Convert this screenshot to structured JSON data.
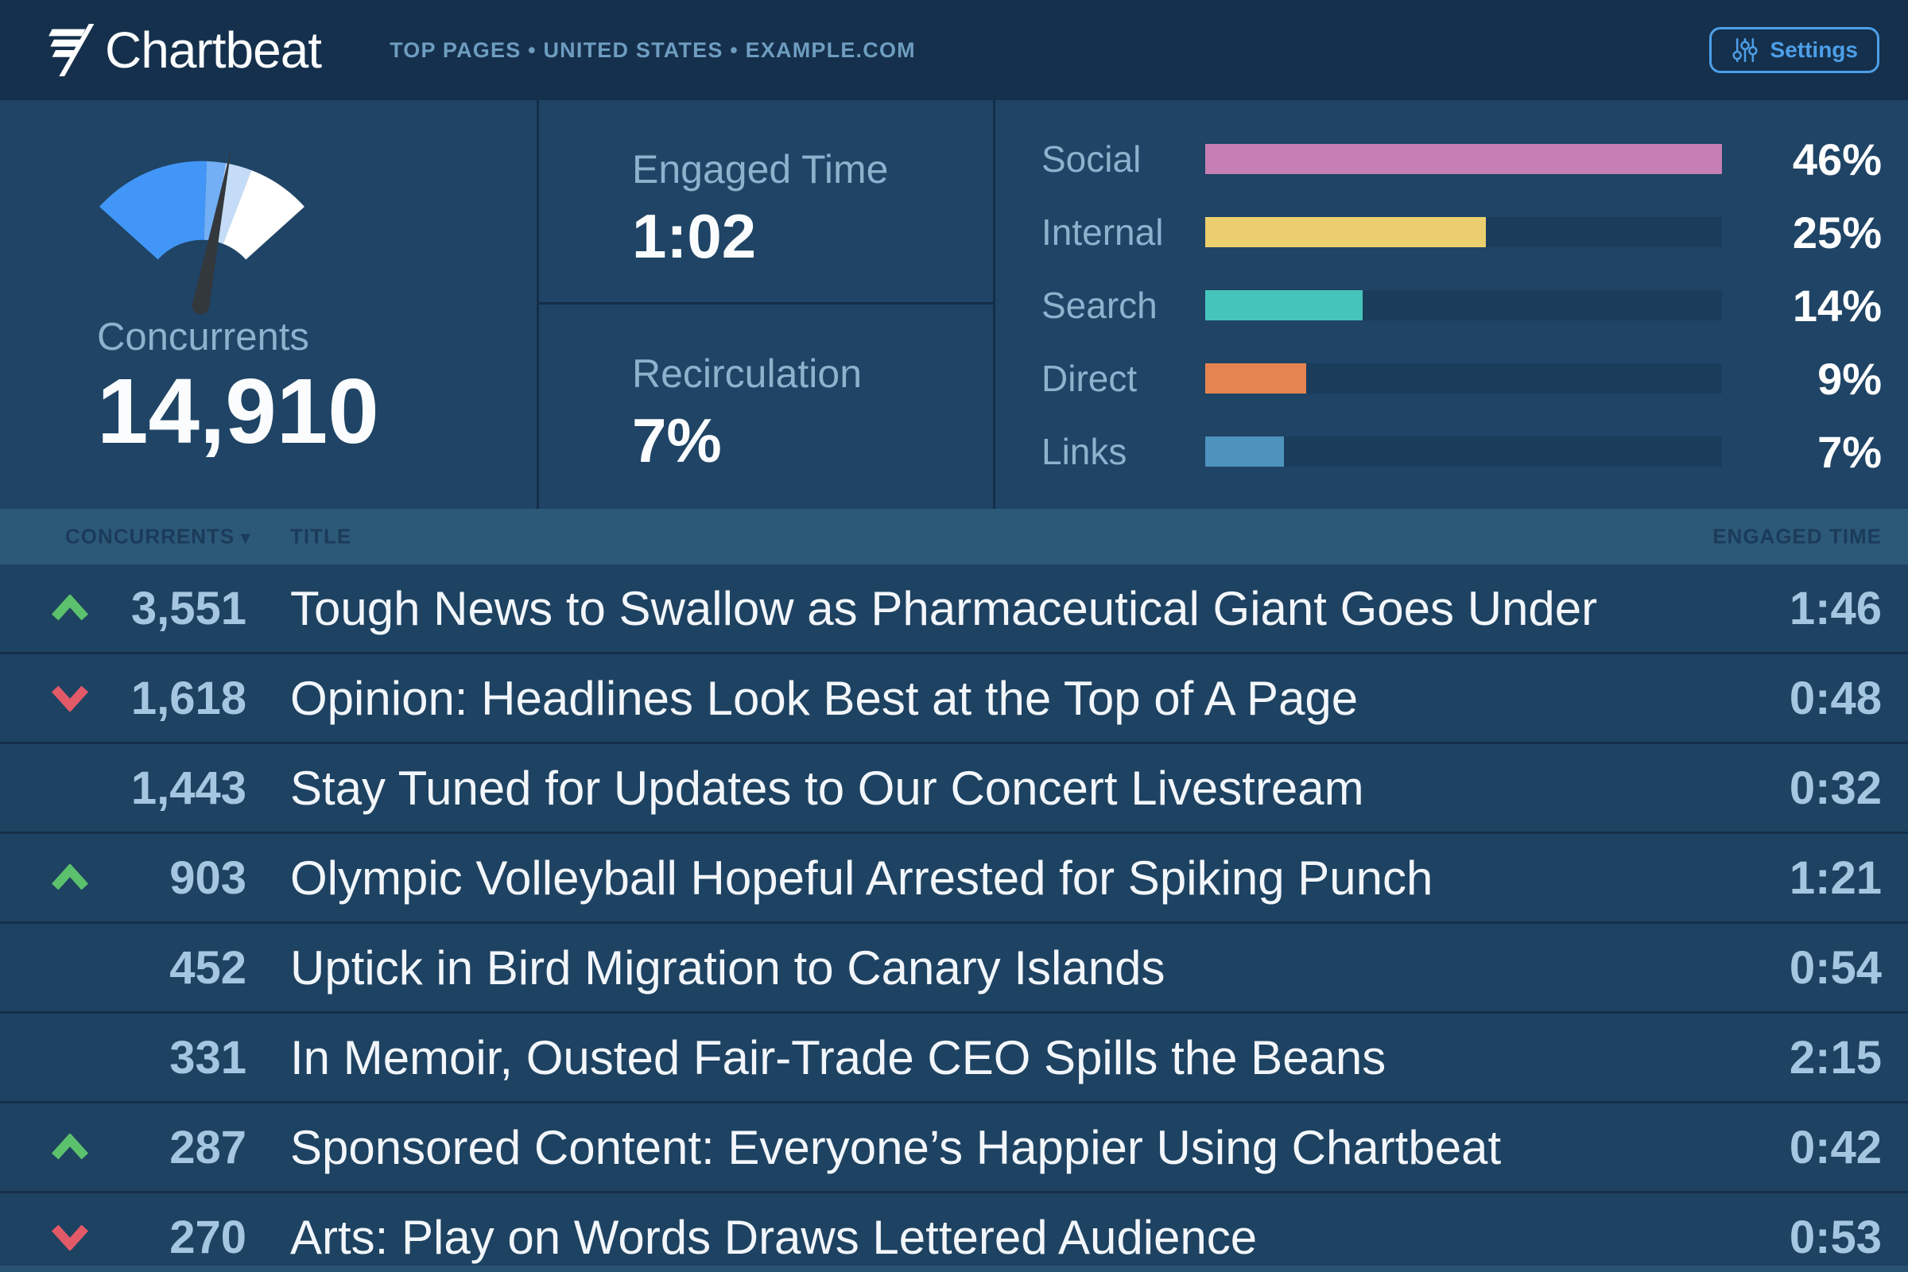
{
  "colors": {
    "trend_up": "#5CC16C",
    "trend_down": "#E25A68",
    "accent_blue": "#4D9FE8",
    "gauge_segments": [
      "#4296F7",
      "#72AFF5",
      "#C4DCF7",
      "#FFFFFF"
    ],
    "gauge_needle": "#33383D"
  },
  "header": {
    "logo_text": "Chartbeat",
    "breadcrumb": "TOP PAGES • UNITED STATES • EXAMPLE.COM",
    "settings_label": "Settings"
  },
  "stats": {
    "concurrents": {
      "label": "Concurrents",
      "value": "14,910"
    },
    "engaged_time": {
      "label": "Engaged Time",
      "value": "1:02"
    },
    "recirculation": {
      "label": "Recirculation",
      "value": "7%"
    },
    "referrers": {
      "max_percent": 46,
      "items": [
        {
          "label": "Social",
          "percent": 46,
          "display": "46%",
          "color": "#C57FB4"
        },
        {
          "label": "Internal",
          "percent": 25,
          "display": "25%",
          "color": "#EBCE6E"
        },
        {
          "label": "Search",
          "percent": 14,
          "display": "14%",
          "color": "#45C4BC"
        },
        {
          "label": "Direct",
          "percent": 9,
          "display": "9%",
          "color": "#E58451"
        },
        {
          "label": "Links",
          "percent": 7,
          "display": "7%",
          "color": "#4E92BE"
        }
      ]
    }
  },
  "table": {
    "columns": {
      "concurrents": "CONCURRENTS",
      "sort_caret": "▾",
      "title": "TITLE",
      "engaged_time": "ENGAGED TIME"
    },
    "rows": [
      {
        "trend": "up",
        "concurrents": "3,551",
        "title": "Tough News to Swallow as Pharmaceutical Giant Goes Under",
        "engaged_time": "1:46"
      },
      {
        "trend": "down",
        "concurrents": "1,618",
        "title": "Opinion: Headlines Look Best at the Top of A Page",
        "engaged_time": "0:48"
      },
      {
        "trend": "none",
        "concurrents": "1,443",
        "title": "Stay Tuned for Updates to Our Concert Livestream",
        "engaged_time": "0:32"
      },
      {
        "trend": "up",
        "concurrents": "903",
        "title": "Olympic Volleyball Hopeful Arrested for Spiking Punch",
        "engaged_time": "1:21"
      },
      {
        "trend": "none",
        "concurrents": "452",
        "title": "Uptick in Bird Migration to Canary Islands",
        "engaged_time": "0:54"
      },
      {
        "trend": "none",
        "concurrents": "331",
        "title": "In Memoir, Ousted Fair-Trade CEO Spills the Beans",
        "engaged_time": "2:15"
      },
      {
        "trend": "up",
        "concurrents": "287",
        "title": "Sponsored Content: Everyone’s Happier Using Chartbeat",
        "engaged_time": "0:42"
      },
      {
        "trend": "down",
        "concurrents": "270",
        "title": "Arts: Play on Words Draws Lettered Audience",
        "engaged_time": "0:53"
      }
    ]
  }
}
